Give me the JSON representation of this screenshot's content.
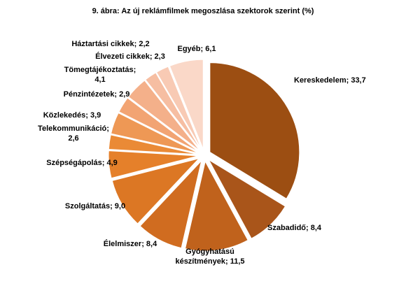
{
  "title": "9. ábra: Az új reklámfilmek megoszlása szektorok szerint (%)",
  "chart_data": {
    "type": "pie",
    "title": "9. ábra: Az új reklámfilmek megoszlása szektorok szerint (%)",
    "slices": [
      {
        "label": "Kereskedelem; 33,7",
        "category": "Kereskedelem",
        "value": 33.7,
        "color": "#9c4e12",
        "lines": [
          "Kereskedelem; 33,7"
        ]
      },
      {
        "label": "Szabadidő; 8,4",
        "category": "Szabadidő",
        "value": 8.4,
        "color": "#a9551a",
        "lines": [
          "Szabadidő; 8,4"
        ]
      },
      {
        "label": "Gyógyhatású készítmények; 11,5",
        "category": "Gyógyhatású készítmények",
        "value": 11.5,
        "color": "#c0621c",
        "lines": [
          "Gyógyhatású",
          "készítmények; 11,5"
        ]
      },
      {
        "label": "Élelmiszer; 8,4",
        "category": "Élelmiszer",
        "value": 8.4,
        "color": "#d06c20",
        "lines": [
          "Élelmiszer; 8,4"
        ]
      },
      {
        "label": "Szolgáltatás; 9,0",
        "category": "Szolgáltatás",
        "value": 9.0,
        "color": "#dc7724",
        "lines": [
          "Szolgáltatás; 9,0"
        ]
      },
      {
        "label": "Szépségápolás; 4,9",
        "category": "Szépségápolás",
        "value": 4.9,
        "color": "#e5802a",
        "lines": [
          "Szépségápolás; 4,9"
        ]
      },
      {
        "label": "Telekommunikáció; 2,6",
        "category": "Telekommunikáció",
        "value": 2.6,
        "color": "#ea8a36",
        "lines": [
          "Telekommunikáció;",
          "2,6"
        ]
      },
      {
        "label": "Közlekedés; 3,9",
        "category": "Közlekedés",
        "value": 3.9,
        "color": "#ee9855",
        "lines": [
          "Közlekedés; 3,9"
        ]
      },
      {
        "label": "Pénzintézetek; 2,9",
        "category": "Pénzintézetek",
        "value": 2.9,
        "color": "#f2a473",
        "lines": [
          "Pénzintézetek; 2,9"
        ]
      },
      {
        "label": "Tömegtájékoztatás; 4,1",
        "category": "Tömegtájékoztatás",
        "value": 4.1,
        "color": "#f4b08a",
        "lines": [
          "Tömegtájékoztatás;",
          "4,1"
        ]
      },
      {
        "label": "Háztartási cikkek; 2,2",
        "category": "Háztartási cikkek",
        "value": 2.2,
        "color": "#f6bea2",
        "lines": [
          "Háztartási cikkek; 2,2"
        ]
      },
      {
        "label": "Élvezeti cikkek; 2,3",
        "category": "Élvezeti cikkek",
        "value": 2.3,
        "color": "#f8cab4",
        "lines": [
          "Élvezeti cikkek; 2,3"
        ]
      },
      {
        "label": "Egyéb; 6,1",
        "category": "Egyéb",
        "value": 6.1,
        "color": "#fad8c8",
        "lines": [
          "Egyéb; 6,1"
        ]
      }
    ],
    "legend": "none (data labels beside slices)"
  }
}
